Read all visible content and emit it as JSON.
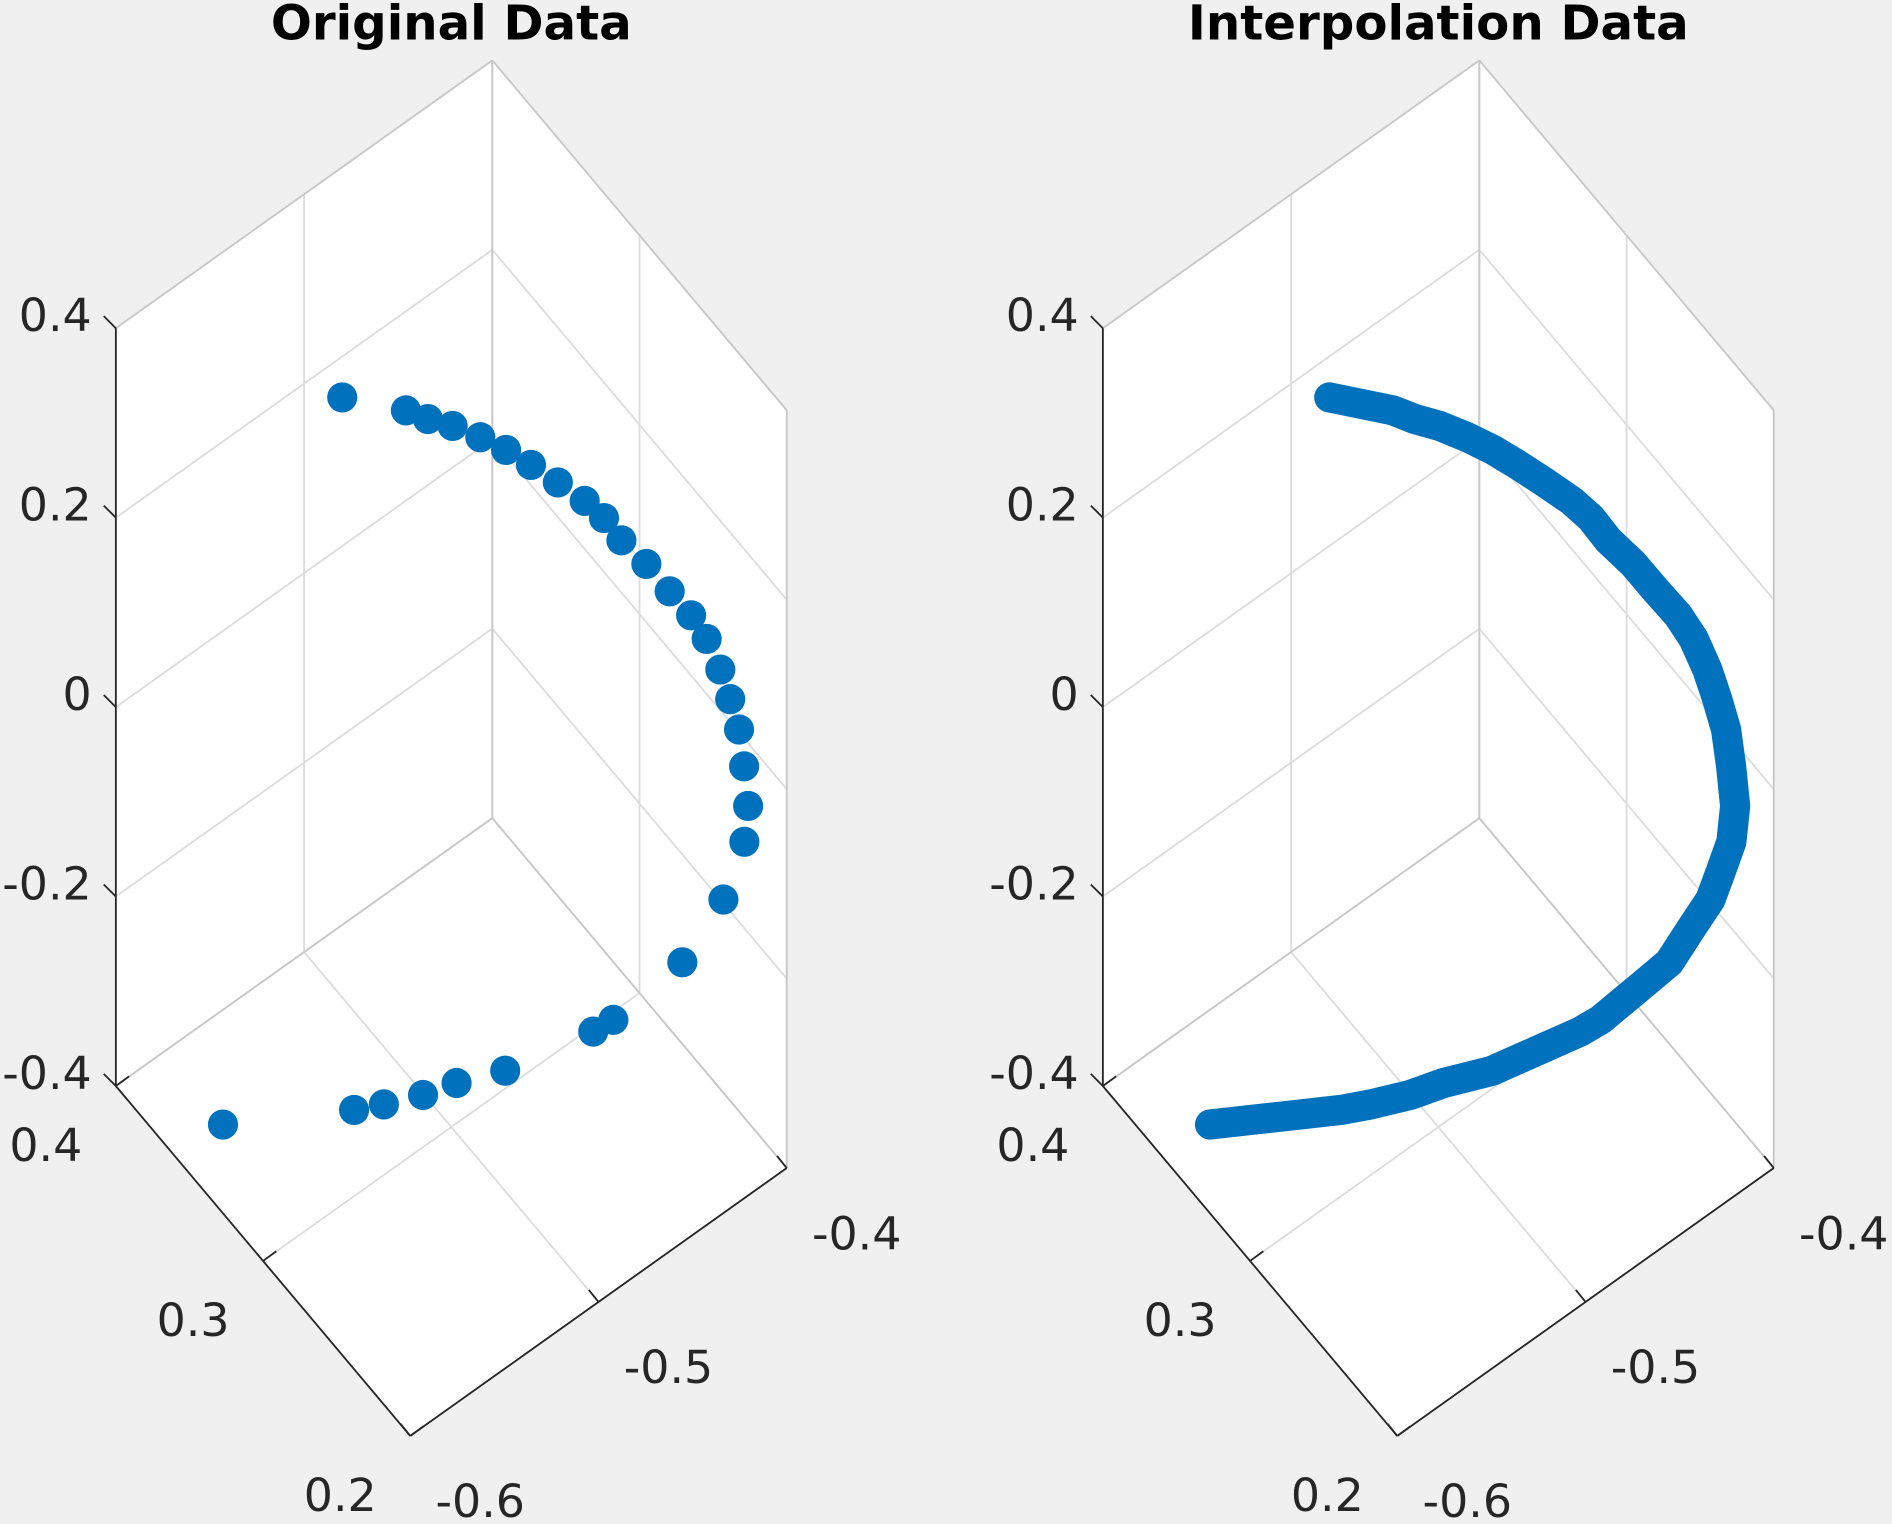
{
  "chart_data": [
    {
      "type": "scatter3d",
      "title": "Original Data",
      "color": "#0072bd",
      "grid": true,
      "xlim": [
        -0.6,
        -0.4
      ],
      "ylim": [
        0.2,
        0.4
      ],
      "zlim": [
        -0.4,
        0.4
      ],
      "xticks": [
        -0.6,
        -0.5,
        -0.4
      ],
      "yticks": [
        0.2,
        0.3,
        0.4
      ],
      "zticks": [
        -0.4,
        -0.2,
        0,
        0.2,
        0.4
      ],
      "x": [
        -0.511,
        -0.485,
        -0.478,
        -0.468,
        -0.458,
        -0.449,
        -0.442,
        -0.434,
        -0.426,
        -0.422,
        -0.419,
        -0.412,
        -0.409,
        -0.407,
        -0.405,
        -0.404,
        -0.405,
        -0.405,
        -0.407,
        -0.408,
        -0.41,
        -0.418,
        -0.432,
        -0.453,
        -0.459,
        -0.487,
        -0.505,
        -0.515,
        -0.528,
        -0.536,
        -0.59
      ],
      "y": [
        0.36,
        0.35,
        0.344,
        0.34,
        0.334,
        0.328,
        0.32,
        0.312,
        0.304,
        0.296,
        0.288,
        0.28,
        0.268,
        0.256,
        0.248,
        0.24,
        0.232,
        0.226,
        0.22,
        0.216,
        0.216,
        0.22,
        0.23,
        0.25,
        0.256,
        0.28,
        0.29,
        0.3,
        0.31,
        0.32,
        0.34
      ],
      "z": [
        0.275,
        0.243,
        0.235,
        0.221,
        0.206,
        0.191,
        0.18,
        0.165,
        0.149,
        0.14,
        0.127,
        0.107,
        0.096,
        0.09,
        0.077,
        0.058,
        0.043,
        0.022,
        -0.003,
        -0.036,
        -0.071,
        -0.128,
        -0.193,
        -0.261,
        -0.276,
        -0.322,
        -0.328,
        -0.345,
        -0.355,
        -0.368,
        -0.344
      ]
    },
    {
      "type": "line3d",
      "title": "Interpolation Data",
      "color": "#0072bd",
      "grid": true,
      "xlim": [
        -0.6,
        -0.4
      ],
      "ylim": [
        0.2,
        0.4
      ],
      "zlim": [
        -0.4,
        0.4
      ],
      "xticks": [
        -0.6,
        -0.5,
        -0.4
      ],
      "yticks": [
        0.2,
        0.3,
        0.4
      ],
      "zticks": [
        -0.4,
        -0.2,
        0,
        0.2,
        0.4
      ],
      "x": [
        -0.511,
        -0.498,
        -0.485,
        -0.478,
        -0.468,
        -0.458,
        -0.449,
        -0.442,
        -0.434,
        -0.426,
        -0.422,
        -0.419,
        -0.412,
        -0.409,
        -0.407,
        -0.405,
        -0.404,
        -0.405,
        -0.405,
        -0.407,
        -0.408,
        -0.41,
        -0.414,
        -0.418,
        -0.425,
        -0.432,
        -0.442,
        -0.453,
        -0.459,
        -0.473,
        -0.487,
        -0.505,
        -0.515,
        -0.528,
        -0.536,
        -0.563,
        -0.59
      ],
      "y": [
        0.36,
        0.355,
        0.35,
        0.344,
        0.34,
        0.334,
        0.328,
        0.32,
        0.312,
        0.304,
        0.296,
        0.288,
        0.28,
        0.268,
        0.256,
        0.248,
        0.24,
        0.232,
        0.226,
        0.22,
        0.216,
        0.216,
        0.218,
        0.22,
        0.225,
        0.23,
        0.24,
        0.25,
        0.256,
        0.268,
        0.28,
        0.29,
        0.3,
        0.31,
        0.32,
        0.33,
        0.34
      ],
      "z": [
        0.275,
        0.259,
        0.243,
        0.235,
        0.221,
        0.206,
        0.191,
        0.18,
        0.165,
        0.149,
        0.14,
        0.127,
        0.107,
        0.096,
        0.09,
        0.077,
        0.058,
        0.043,
        0.022,
        -0.003,
        -0.036,
        -0.071,
        -0.1,
        -0.128,
        -0.16,
        -0.193,
        -0.227,
        -0.261,
        -0.276,
        -0.299,
        -0.322,
        -0.328,
        -0.345,
        -0.355,
        -0.368,
        -0.356,
        -0.344
      ]
    }
  ]
}
